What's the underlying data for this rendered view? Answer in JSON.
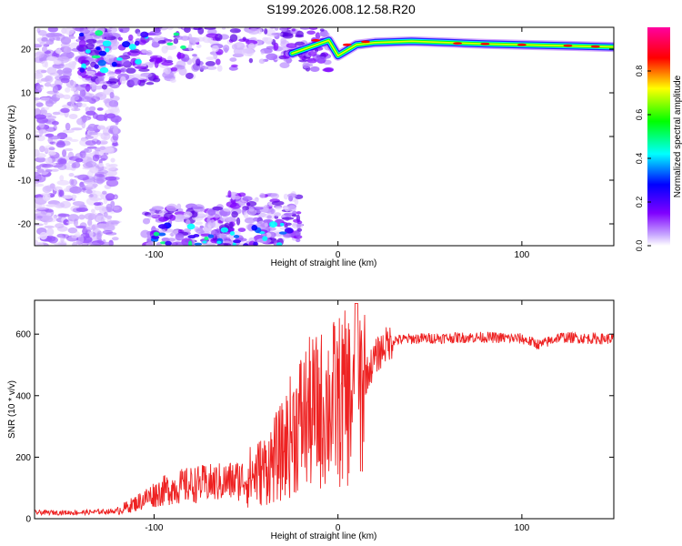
{
  "figure": {
    "title": "S199.2026.008.12.58.R20"
  },
  "chart_data": [
    {
      "type": "heatmap",
      "xlabel": "Height of straight line (km)",
      "ylabel": "Frequency (Hz)",
      "xlim": [
        -165,
        150
      ],
      "ylim": [
        -25,
        25
      ],
      "x_ticks": [
        -100,
        0,
        100
      ],
      "y_ticks": [
        -20,
        -10,
        0,
        10,
        20
      ],
      "colorbar": {
        "label": "Normalized spectral amplitude",
        "range": [
          0,
          1
        ],
        "ticks": [
          "0.0",
          "0.2",
          "0.4",
          "0.6",
          "0.8"
        ],
        "colors": [
          "#ffffff",
          "#7f00ff",
          "#0000ff",
          "#00ffff",
          "#00ff00",
          "#ffff00",
          "#ff0000",
          "#ff00ff"
        ]
      },
      "signal_ridge": {
        "description_points_x": [
          -25,
          -15,
          -5,
          0,
          10,
          20,
          40,
          60,
          80,
          100,
          120,
          150
        ],
        "frequency_hz": [
          19,
          20.5,
          22,
          18.5,
          21,
          21.5,
          21.8,
          21.5,
          21.2,
          21,
          20.8,
          20.5
        ]
      }
    },
    {
      "type": "line",
      "xlabel": "Height of straight line (km)",
      "ylabel": "SNR (10 * v/v)",
      "xlim": [
        -165,
        150
      ],
      "ylim": [
        0,
        710
      ],
      "x_ticks": [
        -100,
        0,
        100
      ],
      "y_ticks": [
        0,
        200,
        400,
        600
      ],
      "color": "#ee2222",
      "x": [
        -165,
        -140,
        -120,
        -110,
        -100,
        -90,
        -80,
        -70,
        -60,
        -50,
        -40,
        -30,
        -25,
        -20,
        -15,
        -10,
        -5,
        0,
        5,
        8,
        10,
        12,
        15,
        20,
        25,
        30,
        40,
        60,
        80,
        100,
        110,
        120,
        140,
        150
      ],
      "y": [
        20,
        20,
        25,
        50,
        80,
        100,
        110,
        115,
        120,
        130,
        160,
        220,
        280,
        320,
        340,
        350,
        370,
        380,
        390,
        400,
        270,
        420,
        460,
        520,
        560,
        580,
        585,
        588,
        590,
        585,
        565,
        590,
        585,
        585
      ]
    }
  ]
}
